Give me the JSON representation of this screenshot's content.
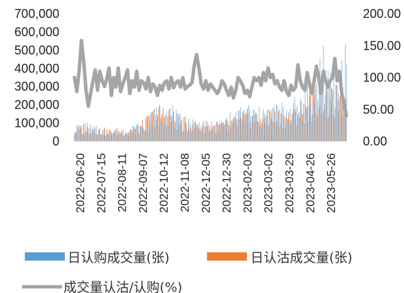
{
  "chart_data": {
    "type": "bar",
    "left_axis": {
      "ticks": [
        "700,000",
        "600,000",
        "500,000",
        "400,000",
        "300,000",
        "200,000",
        "100,000",
        "0"
      ],
      "range": [
        0,
        700000
      ]
    },
    "right_axis": {
      "ticks": [
        "200.00",
        "150.00",
        "100.00",
        "50.00",
        "0.00"
      ],
      "range": [
        0,
        200
      ]
    },
    "x_tick_labels": [
      "2022-06-20",
      "2022-07-15",
      "2022-08-11",
      "2022-09-07",
      "2022-10-12",
      "2022-11-08",
      "2022-12-05",
      "2022-12-30",
      "2023-02-03",
      "2023-03-02",
      "2023-03-29",
      "2023-04-26",
      "2023-05-26"
    ],
    "series": [
      {
        "name": "日认购成交量(张)",
        "kind": "bar",
        "axis": "left",
        "color": "#5B9BD5",
        "anchors": [
          [
            0,
            80000
          ],
          [
            10,
            90000
          ],
          [
            20,
            70000
          ],
          [
            30,
            60000
          ],
          [
            40,
            70000
          ],
          [
            50,
            80000
          ],
          [
            60,
            90000
          ],
          [
            70,
            160000
          ],
          [
            80,
            210000
          ],
          [
            85,
            170000
          ],
          [
            90,
            130000
          ],
          [
            100,
            110000
          ],
          [
            110,
            100000
          ],
          [
            120,
            90000
          ],
          [
            130,
            120000
          ],
          [
            140,
            150000
          ],
          [
            150,
            190000
          ],
          [
            160,
            160000
          ],
          [
            170,
            180000
          ],
          [
            180,
            190000
          ],
          [
            190,
            200000
          ],
          [
            200,
            280000
          ],
          [
            210,
            320000
          ],
          [
            215,
            560000
          ],
          [
            220,
            330000
          ],
          [
            225,
            350000
          ],
          [
            230,
            300000
          ],
          [
            236,
            560000
          ]
        ]
      },
      {
        "name": "日认沽成交量(张)",
        "kind": "bar",
        "axis": "left",
        "color": "#ED7D31",
        "anchors": [
          [
            0,
            70000
          ],
          [
            10,
            80000
          ],
          [
            20,
            70000
          ],
          [
            30,
            60000
          ],
          [
            40,
            60000
          ],
          [
            50,
            70000
          ],
          [
            60,
            100000
          ],
          [
            70,
            170000
          ],
          [
            80,
            180000
          ],
          [
            85,
            150000
          ],
          [
            90,
            120000
          ],
          [
            100,
            110000
          ],
          [
            110,
            100000
          ],
          [
            120,
            90000
          ],
          [
            130,
            100000
          ],
          [
            140,
            120000
          ],
          [
            150,
            150000
          ],
          [
            160,
            140000
          ],
          [
            170,
            150000
          ],
          [
            180,
            150000
          ],
          [
            190,
            160000
          ],
          [
            200,
            210000
          ],
          [
            210,
            260000
          ],
          [
            215,
            300000
          ],
          [
            220,
            230000
          ],
          [
            225,
            260000
          ],
          [
            230,
            280000
          ],
          [
            236,
            250000
          ]
        ]
      },
      {
        "name": "成交量认沽/认购(%)",
        "kind": "line",
        "axis": "right",
        "color": "#A5A5A5",
        "anchors": [
          [
            0,
            100
          ],
          [
            2,
            78
          ],
          [
            4,
            110
          ],
          [
            6,
            158
          ],
          [
            8,
            125
          ],
          [
            10,
            80
          ],
          [
            12,
            55
          ],
          [
            14,
            75
          ],
          [
            16,
            95
          ],
          [
            18,
            112
          ],
          [
            20,
            80
          ],
          [
            22,
            110
          ],
          [
            24,
            95
          ],
          [
            26,
            86
          ],
          [
            28,
            98
          ],
          [
            30,
            115
          ],
          [
            32,
            72
          ],
          [
            34,
            100
          ],
          [
            36,
            85
          ],
          [
            38,
            115
          ],
          [
            40,
            78
          ],
          [
            42,
            90
          ],
          [
            44,
            100
          ],
          [
            46,
            112
          ],
          [
            48,
            75
          ],
          [
            50,
            95
          ],
          [
            52,
            85
          ],
          [
            54,
            110
          ],
          [
            56,
            80
          ],
          [
            58,
            95
          ],
          [
            60,
            92
          ],
          [
            62,
            82
          ],
          [
            64,
            100
          ],
          [
            66,
            78
          ],
          [
            68,
            90
          ],
          [
            70,
            85
          ],
          [
            72,
            72
          ],
          [
            74,
            88
          ],
          [
            76,
            80
          ],
          [
            78,
            92
          ],
          [
            80,
            95
          ],
          [
            82,
            82
          ],
          [
            84,
            100
          ],
          [
            86,
            84
          ],
          [
            88,
            92
          ],
          [
            90,
            95
          ],
          [
            92,
            85
          ],
          [
            94,
            100
          ],
          [
            96,
            82
          ],
          [
            98,
            86
          ],
          [
            100,
            88
          ],
          [
            102,
            92
          ],
          [
            104,
            120
          ],
          [
            106,
            136
          ],
          [
            108,
            115
          ],
          [
            110,
            90
          ],
          [
            112,
            82
          ],
          [
            114,
            95
          ],
          [
            116,
            80
          ],
          [
            118,
            90
          ],
          [
            120,
            85
          ],
          [
            122,
            80
          ],
          [
            124,
            75
          ],
          [
            126,
            82
          ],
          [
            128,
            95
          ],
          [
            130,
            90
          ],
          [
            132,
            80
          ],
          [
            134,
            72
          ],
          [
            136,
            85
          ],
          [
            138,
            68
          ],
          [
            140,
            80
          ],
          [
            142,
            100
          ],
          [
            144,
            95
          ],
          [
            146,
            88
          ],
          [
            148,
            75
          ],
          [
            150,
            80
          ],
          [
            152,
            70
          ],
          [
            154,
            85
          ],
          [
            156,
            100
          ],
          [
            158,
            95
          ],
          [
            160,
            100
          ],
          [
            162,
            88
          ],
          [
            164,
            108
          ],
          [
            166,
            95
          ],
          [
            168,
            115
          ],
          [
            170,
            100
          ],
          [
            172,
            105
          ],
          [
            174,
            90
          ],
          [
            176,
            95
          ],
          [
            178,
            85
          ],
          [
            180,
            80
          ],
          [
            182,
            95
          ],
          [
            184,
            78
          ],
          [
            186,
            72
          ],
          [
            188,
            88
          ],
          [
            190,
            80
          ],
          [
            192,
            85
          ],
          [
            194,
            120
          ],
          [
            196,
            95
          ],
          [
            198,
            85
          ],
          [
            200,
            80
          ],
          [
            202,
            108
          ],
          [
            204,
            90
          ],
          [
            206,
            75
          ],
          [
            208,
            95
          ],
          [
            210,
            118
          ],
          [
            212,
            100
          ],
          [
            214,
            75
          ],
          [
            216,
            110
          ],
          [
            218,
            95
          ],
          [
            220,
            85
          ],
          [
            222,
            95
          ],
          [
            224,
            100
          ],
          [
            226,
            130
          ],
          [
            228,
            95
          ],
          [
            230,
            110
          ],
          [
            232,
            75
          ],
          [
            234,
            60
          ],
          [
            236,
            40
          ]
        ]
      }
    ]
  }
}
